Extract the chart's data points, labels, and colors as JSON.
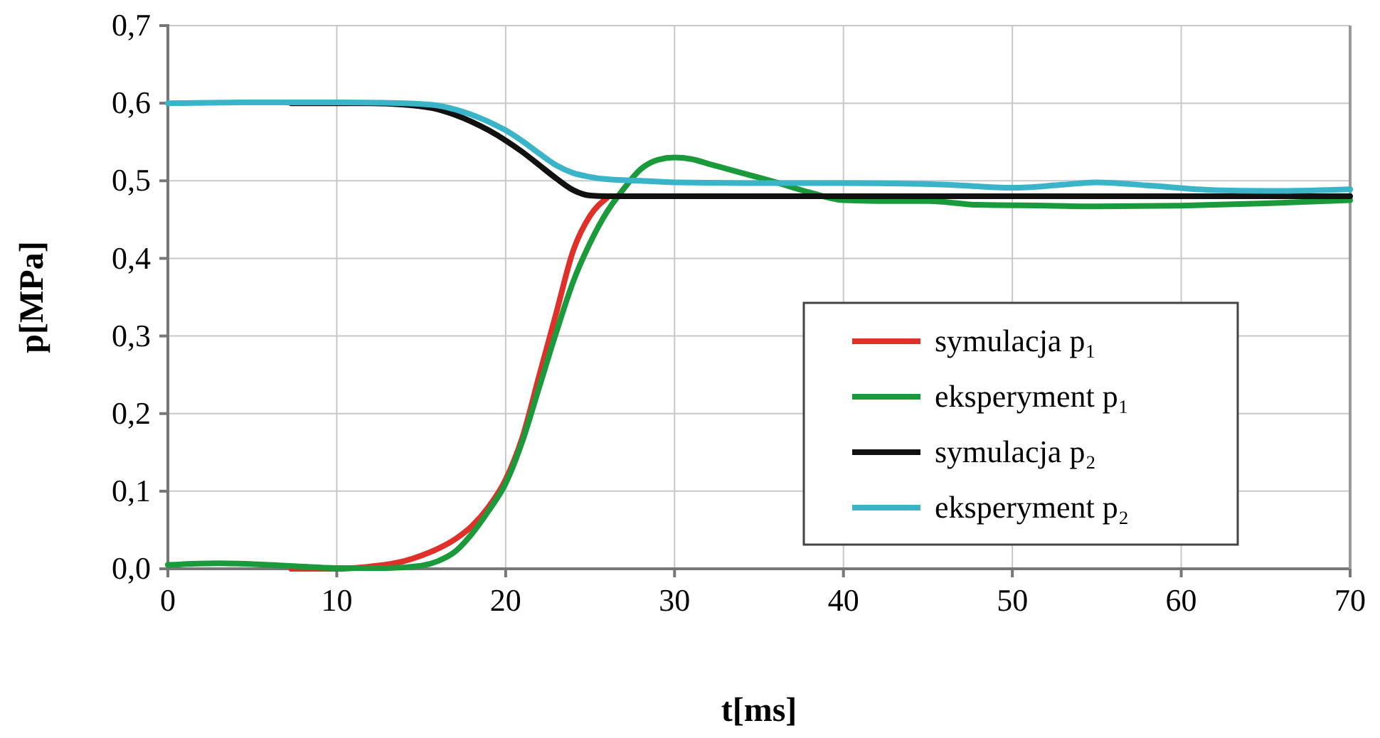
{
  "chart_data": {
    "type": "line",
    "xlabel": "t[ms]",
    "ylabel": "p[MPa]",
    "xlim": [
      0,
      70
    ],
    "ylim": [
      0,
      0.7
    ],
    "xticks": [
      0,
      10,
      20,
      30,
      40,
      50,
      60,
      70
    ],
    "yticks": [
      {
        "value": 0,
        "label": "0,0"
      },
      {
        "value": 0.1,
        "label": "0,1"
      },
      {
        "value": 0.2,
        "label": "0,2"
      },
      {
        "value": 0.3,
        "label": "0,3"
      },
      {
        "value": 0.4,
        "label": "0,4"
      },
      {
        "value": 0.5,
        "label": "0,5"
      },
      {
        "value": 0.6,
        "label": "0,6"
      },
      {
        "value": 0.7,
        "label": "0,7"
      }
    ],
    "grid": true,
    "legend": "right",
    "marker": "none",
    "line_style": "solid",
    "series": [
      {
        "name": "symulacja p₁",
        "color": "#e0302a",
        "x": [
          7.3,
          10,
          12,
          14,
          15,
          16,
          17,
          18,
          19,
          20,
          21,
          22,
          23,
          24,
          25,
          26
        ],
        "values": [
          0,
          0,
          0.003,
          0.01,
          0.017,
          0.026,
          0.038,
          0.055,
          0.08,
          0.115,
          0.17,
          0.25,
          0.33,
          0.41,
          0.455,
          0.478
        ]
      },
      {
        "name": "eksperyment p₁",
        "color": "#1a9a3a",
        "x": [
          0,
          3,
          7,
          10,
          13,
          15,
          16,
          17,
          18,
          19,
          20,
          21,
          22,
          23,
          24,
          25,
          26,
          27,
          28,
          29,
          30,
          31,
          32,
          34,
          36,
          38,
          40,
          42,
          45,
          48,
          52,
          55,
          60,
          65,
          70
        ],
        "values": [
          0.005,
          0.007,
          0.004,
          0.001,
          0.001,
          0.004,
          0.01,
          0.022,
          0.045,
          0.075,
          0.11,
          0.165,
          0.235,
          0.305,
          0.37,
          0.42,
          0.46,
          0.49,
          0.515,
          0.527,
          0.53,
          0.528,
          0.522,
          0.51,
          0.498,
          0.485,
          0.475,
          0.474,
          0.474,
          0.469,
          0.468,
          0.467,
          0.468,
          0.471,
          0.475
        ]
      },
      {
        "name": "symulacja p₂",
        "color": "#111111",
        "x": [
          7.3,
          10,
          12,
          14,
          16,
          17,
          18,
          19,
          20,
          21,
          22,
          23,
          24,
          25,
          26,
          30,
          40,
          50,
          60,
          70
        ],
        "values": [
          0.6,
          0.6,
          0.6,
          0.598,
          0.592,
          0.585,
          0.576,
          0.565,
          0.552,
          0.537,
          0.52,
          0.503,
          0.488,
          0.481,
          0.48,
          0.48,
          0.48,
          0.48,
          0.48,
          0.48
        ]
      },
      {
        "name": "eksperyment p₂",
        "color": "#3ab4c8",
        "x": [
          0,
          5,
          10,
          14,
          16,
          17,
          18,
          19,
          20,
          21,
          22,
          23,
          24,
          25,
          26,
          28,
          30,
          35,
          40,
          46,
          50,
          53,
          55,
          58,
          62,
          66,
          70
        ],
        "values": [
          0.6,
          0.601,
          0.601,
          0.6,
          0.597,
          0.592,
          0.585,
          0.576,
          0.565,
          0.551,
          0.535,
          0.52,
          0.51,
          0.505,
          0.502,
          0.5,
          0.498,
          0.497,
          0.497,
          0.495,
          0.491,
          0.495,
          0.498,
          0.494,
          0.488,
          0.487,
          0.489
        ]
      }
    ]
  }
}
